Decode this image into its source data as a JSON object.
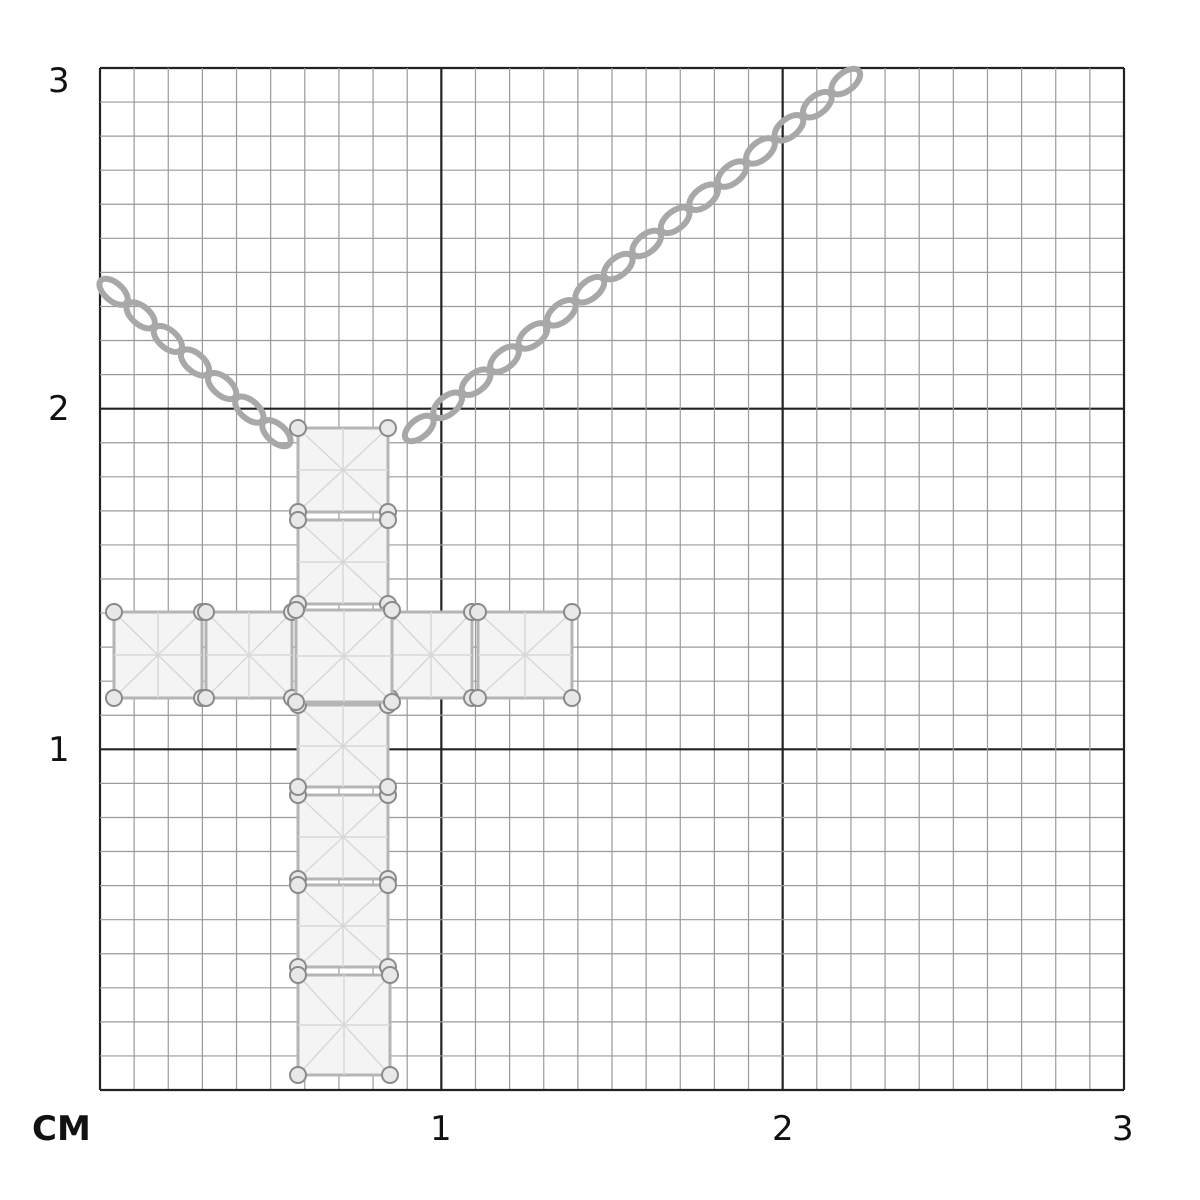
{
  "scale": {
    "unit_label": "CM",
    "y_labels": [
      "3",
      "2",
      "1"
    ],
    "x_labels": [
      "1",
      "2",
      "3"
    ],
    "range_cm": [
      0,
      3
    ],
    "minor_divisions_per_cm": 10
  },
  "colors": {
    "major_grid": "#222222",
    "minor_grid": "#9a9a9a",
    "metal": "#a8a8a8"
  },
  "subject": "diamond-cross-pendant-on-chain"
}
